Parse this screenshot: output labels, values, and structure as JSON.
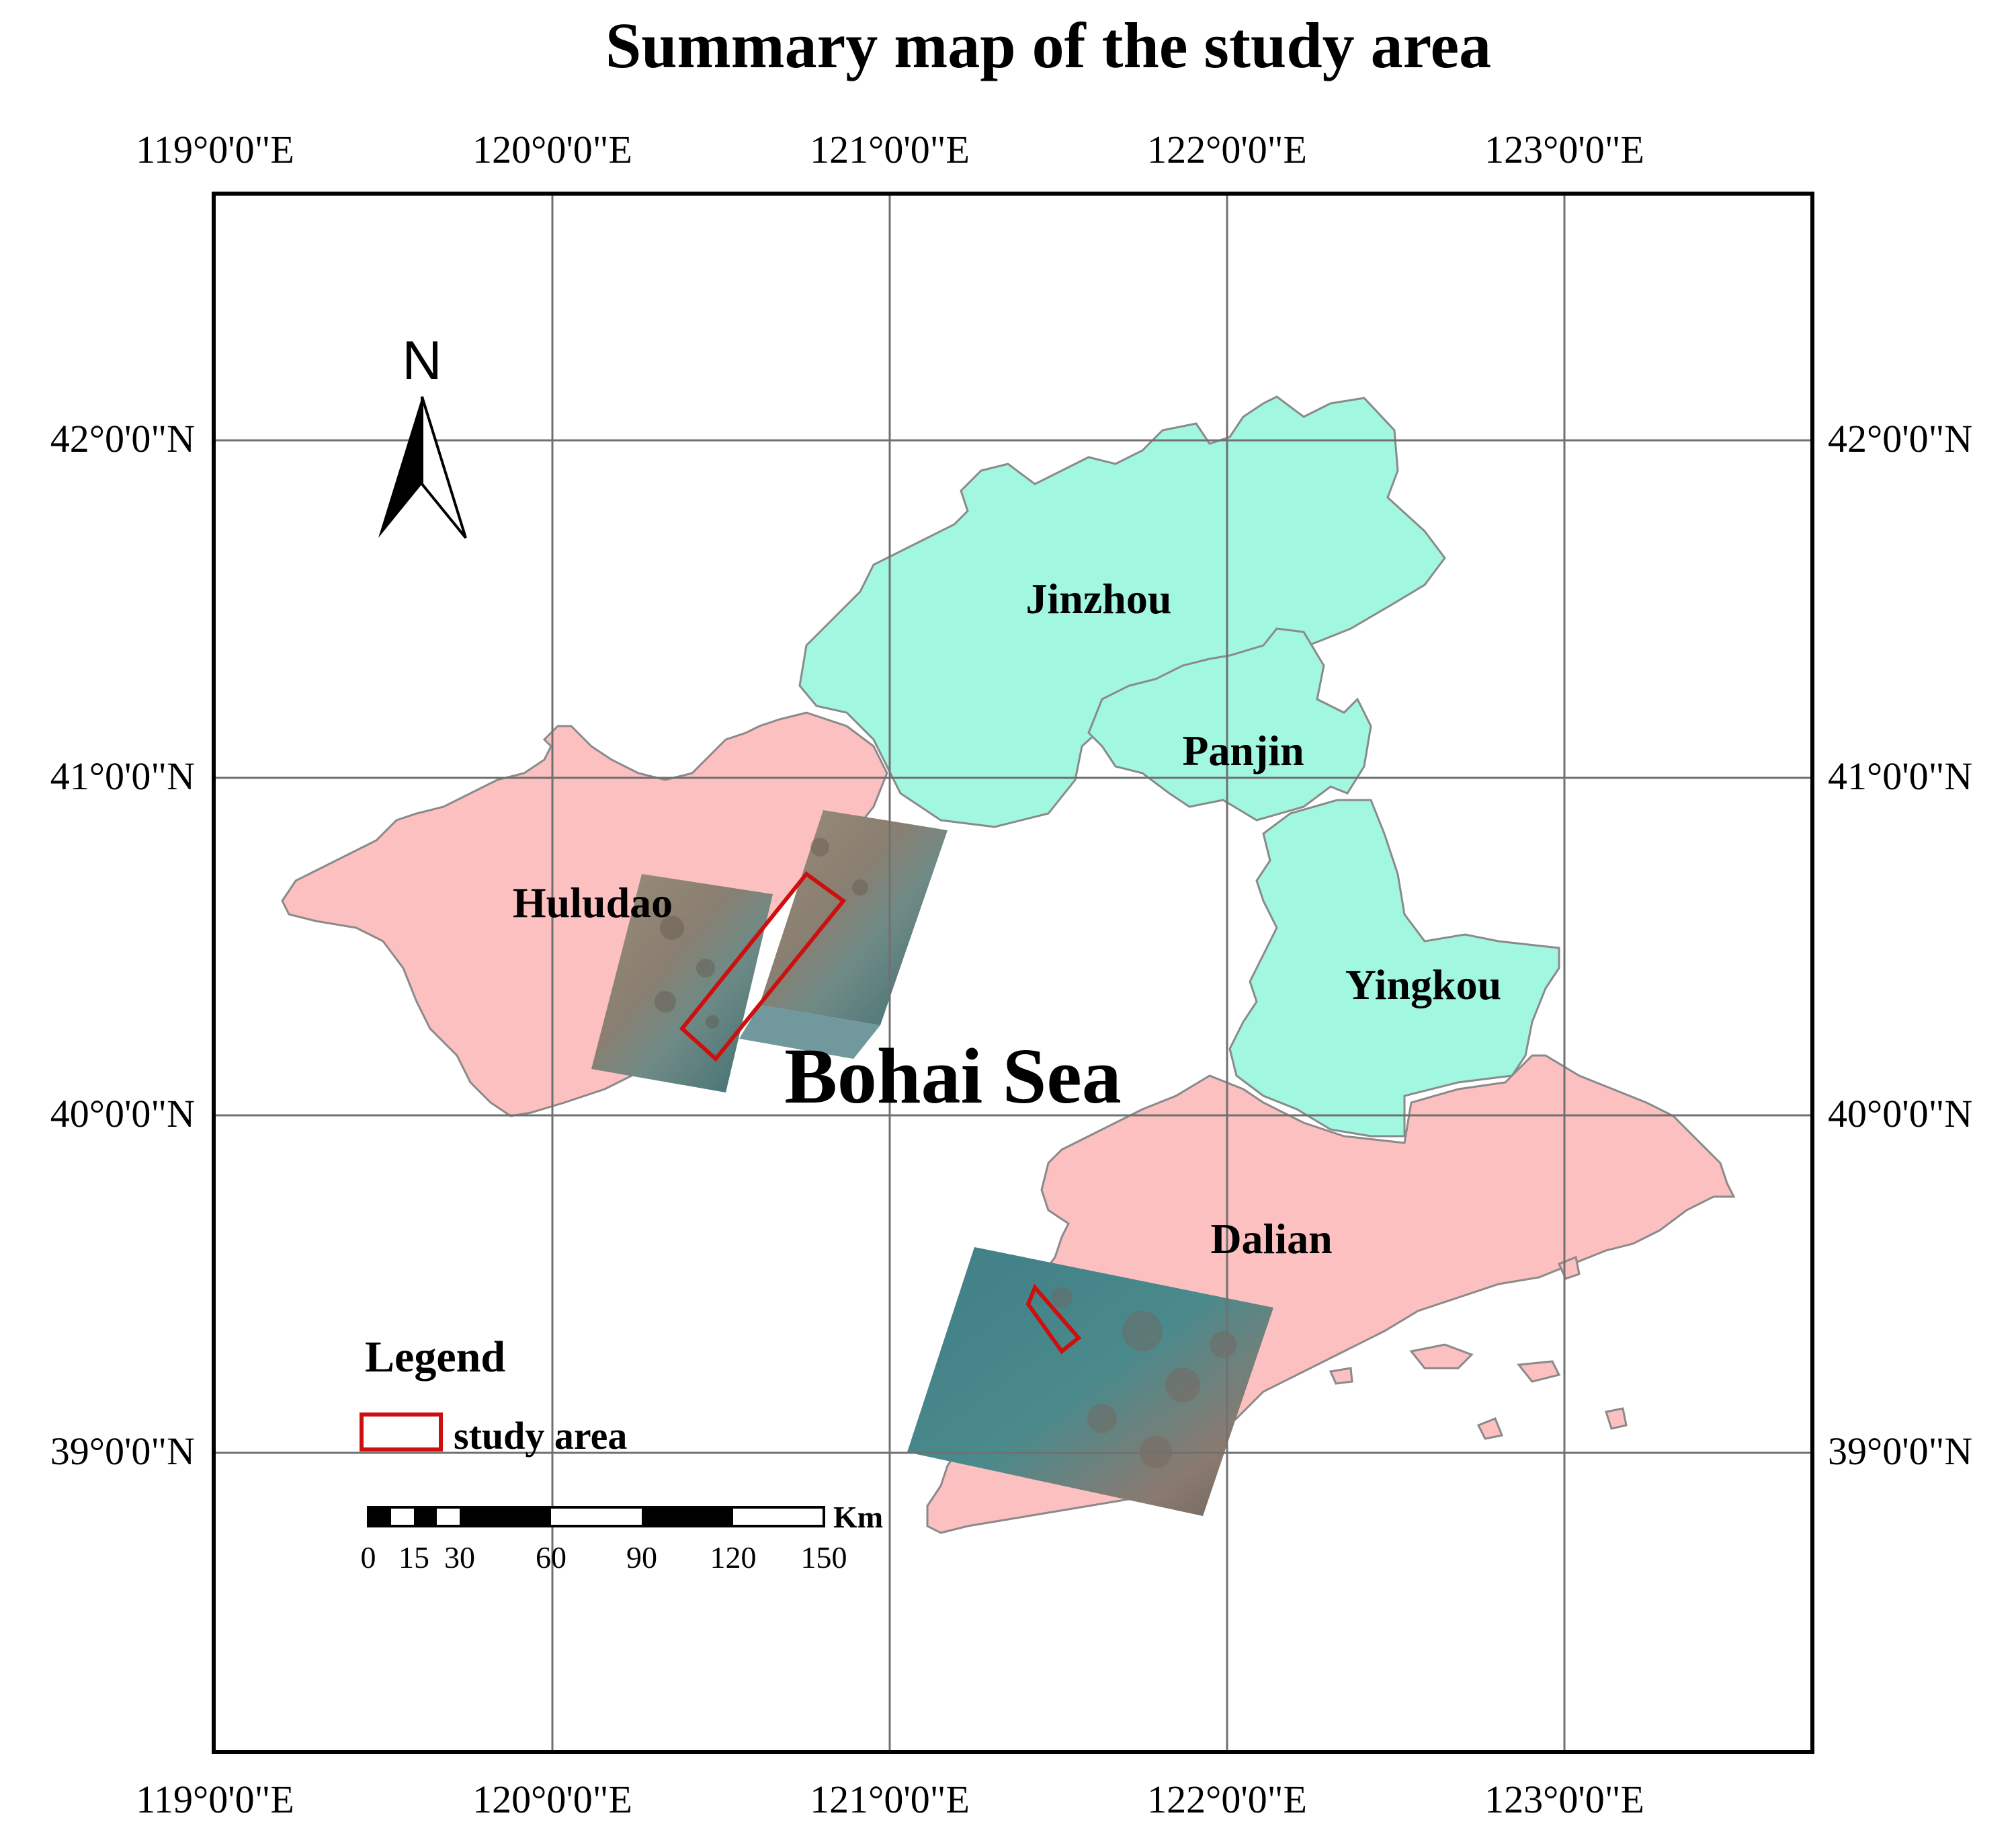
{
  "title": "Summary map of the study area",
  "longitude_labels": [
    "119°0'0\"E",
    "120°0'0\"E",
    "121°0'0\"E",
    "122°0'0\"E",
    "123°0'0\"E"
  ],
  "latitude_labels": [
    "42°0'0\"N",
    "41°0'0\"N",
    "40°0'0\"N",
    "39°0'0\"N"
  ],
  "regions": {
    "jinzhou": "Jinzhou",
    "panjin": "Panjin",
    "yingkou": "Yingkou",
    "huludao": "Huludao",
    "dalian": "Dalian"
  },
  "sea_label": "Bohai Sea",
  "north_arrow": {
    "label": "N",
    "icon": "north-arrow-icon"
  },
  "legend": {
    "title": "Legend",
    "items": [
      {
        "label": "study area",
        "color": "#cc1010"
      }
    ]
  },
  "scale_bar": {
    "unit": "Km",
    "ticks": [
      "0",
      "15",
      "30",
      "60",
      "90",
      "120",
      "150"
    ]
  },
  "colors": {
    "study_area_outline": "#cc1010",
    "huludao_dalian_fill": "#fcc0c0",
    "jinzhou_panjin_yingkou_fill": "#a2f7e0",
    "graticule": "#707070",
    "sea": "#ffffff"
  }
}
